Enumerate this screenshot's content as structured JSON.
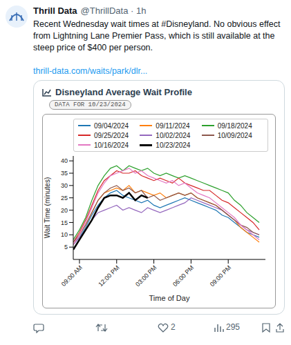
{
  "post": {
    "author": "Thrill Data",
    "byline": "@ThrillData · 1h",
    "text": "Recent Wednesday wait times at #Disneyland. No obvious effect from Lightning Lane Premier Pass, which is still available at the steep price of $400 per person.",
    "link": "thrill-data.com/waits/park/dlr...",
    "likes": 2,
    "views": 295
  },
  "chart_data": {
    "type": "line",
    "title": "Disneyland Average Wait Profile",
    "subtitle": "DATA FOR 10/23/2024",
    "x_label": "Time of Day",
    "y_label": "Wait Time (minutes)",
    "x": [
      8.5,
      9,
      9.5,
      10,
      10.5,
      11,
      11.5,
      12,
      12.5,
      13,
      13.5,
      14,
      14.5,
      15,
      15.5,
      16,
      16.5,
      17,
      17.5,
      18,
      18.5,
      19,
      19.5,
      20,
      20.5,
      21,
      21.5,
      22,
      22.5,
      23,
      23.5
    ],
    "xlim": [
      8.5,
      24
    ],
    "xticks": [
      {
        "value": 9,
        "label": "09:00 AM"
      },
      {
        "value": 12,
        "label": "12:00 PM"
      },
      {
        "value": 15,
        "label": "03:00 PM"
      },
      {
        "value": 18,
        "label": "06:00 PM"
      },
      {
        "value": 21,
        "label": "09:00 PM"
      }
    ],
    "ylim": [
      0,
      42
    ],
    "yticks": [
      5,
      10,
      15,
      20,
      25,
      30,
      35,
      40
    ],
    "grid": false,
    "legend": "top",
    "series": [
      {
        "name": "09/04/2024",
        "color": "#1f77b4",
        "values": [
          6,
          9,
          13,
          18,
          22,
          25,
          27,
          28,
          26,
          25,
          24,
          23,
          24,
          22,
          21,
          22,
          23,
          24,
          25,
          24,
          23,
          22,
          21,
          20,
          18,
          17,
          15,
          13,
          11,
          10,
          9
        ]
      },
      {
        "name": "09/11/2024",
        "color": "#ff7f0e",
        "values": [
          6,
          10,
          14,
          19,
          24,
          27,
          28,
          29,
          28,
          30,
          27,
          28,
          27,
          26,
          27,
          25,
          26,
          27,
          26,
          27,
          25,
          24,
          23,
          22,
          20,
          18,
          16,
          13,
          11,
          9,
          7
        ]
      },
      {
        "name": "09/18/2024",
        "color": "#2ca02c",
        "values": [
          8,
          12,
          17,
          24,
          30,
          34,
          37,
          38,
          36,
          38,
          37,
          36,
          37,
          35,
          34,
          35,
          34,
          33,
          34,
          33,
          32,
          31,
          30,
          29,
          28,
          27,
          24,
          22,
          19,
          17,
          15
        ]
      },
      {
        "name": "09/25/2024",
        "color": "#d62728",
        "values": [
          7,
          11,
          16,
          22,
          28,
          32,
          34,
          36,
          35,
          35,
          36,
          34,
          33,
          32,
          33,
          32,
          31,
          33,
          31,
          30,
          29,
          28,
          28,
          26,
          24,
          23,
          21,
          19,
          17,
          15,
          12
        ]
      },
      {
        "name": "10/02/2024",
        "color": "#9467bd",
        "values": [
          6,
          9,
          12,
          16,
          19,
          20,
          21,
          22,
          20,
          21,
          20,
          19,
          21,
          20,
          19,
          20,
          21,
          22,
          23,
          25,
          24,
          23,
          22,
          21,
          20,
          18,
          16,
          14,
          12,
          11,
          10
        ]
      },
      {
        "name": "10/09/2024",
        "color": "#8c564b",
        "values": [
          7,
          10,
          14,
          19,
          24,
          27,
          29,
          30,
          28,
          29,
          27,
          28,
          25,
          26,
          24,
          25,
          26,
          27,
          26,
          27,
          25,
          24,
          23,
          22,
          20,
          18,
          16,
          14,
          13,
          11,
          10
        ]
      },
      {
        "name": "10/16/2024",
        "color": "#e377c2",
        "values": [
          6,
          10,
          15,
          21,
          27,
          31,
          34,
          35,
          36,
          37,
          35,
          36,
          34,
          33,
          32,
          31,
          32,
          30,
          31,
          29,
          27,
          26,
          25,
          23,
          21,
          19,
          17,
          14,
          12,
          10,
          8
        ]
      },
      {
        "name": "10/23/2024",
        "color": "#000000",
        "values": [
          4,
          8,
          12,
          16,
          21,
          25,
          26,
          26,
          25,
          27,
          24,
          26,
          25,
          null,
          null,
          null,
          null,
          null,
          null,
          null,
          null,
          null,
          null,
          null,
          null,
          null,
          null,
          null,
          null,
          null,
          null
        ]
      }
    ]
  }
}
